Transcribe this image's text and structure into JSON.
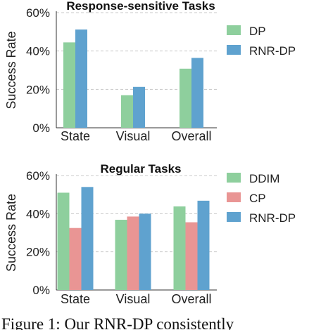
{
  "caption": "Figure 1: Our RNR-DP consistently",
  "chart_data": [
    {
      "type": "bar",
      "title": "Response-sensitive Tasks",
      "ylabel": "Success Rate",
      "xlabel": "",
      "categories": [
        "State",
        "Visual",
        "Overall"
      ],
      "ylim": [
        0,
        60
      ],
      "yticks": [
        "0%",
        "20%",
        "40%",
        "60%"
      ],
      "grid": true,
      "legend_position": "right",
      "series": [
        {
          "name": "DP",
          "color": "#8ecf9d",
          "values": [
            44.5,
            17,
            30.8
          ]
        },
        {
          "name": "RNR-DP",
          "color": "#5fa2cf",
          "values": [
            51.2,
            21.3,
            36.4
          ]
        }
      ]
    },
    {
      "type": "bar",
      "title": "Regular Tasks",
      "ylabel": "Success Rate",
      "xlabel": "",
      "categories": [
        "State",
        "Visual",
        "Overall"
      ],
      "ylim": [
        0,
        60
      ],
      "yticks": [
        "0%",
        "20%",
        "40%",
        "60%"
      ],
      "grid": true,
      "legend_position": "right",
      "series": [
        {
          "name": "DDIM",
          "color": "#8ecf9d",
          "values": [
            51,
            36.8,
            43.8
          ]
        },
        {
          "name": "CP",
          "color": "#e99594",
          "values": [
            32.5,
            38.5,
            35.5
          ]
        },
        {
          "name": "RNR-DP",
          "color": "#5fa2cf",
          "values": [
            54,
            40,
            46.8
          ]
        }
      ]
    }
  ]
}
